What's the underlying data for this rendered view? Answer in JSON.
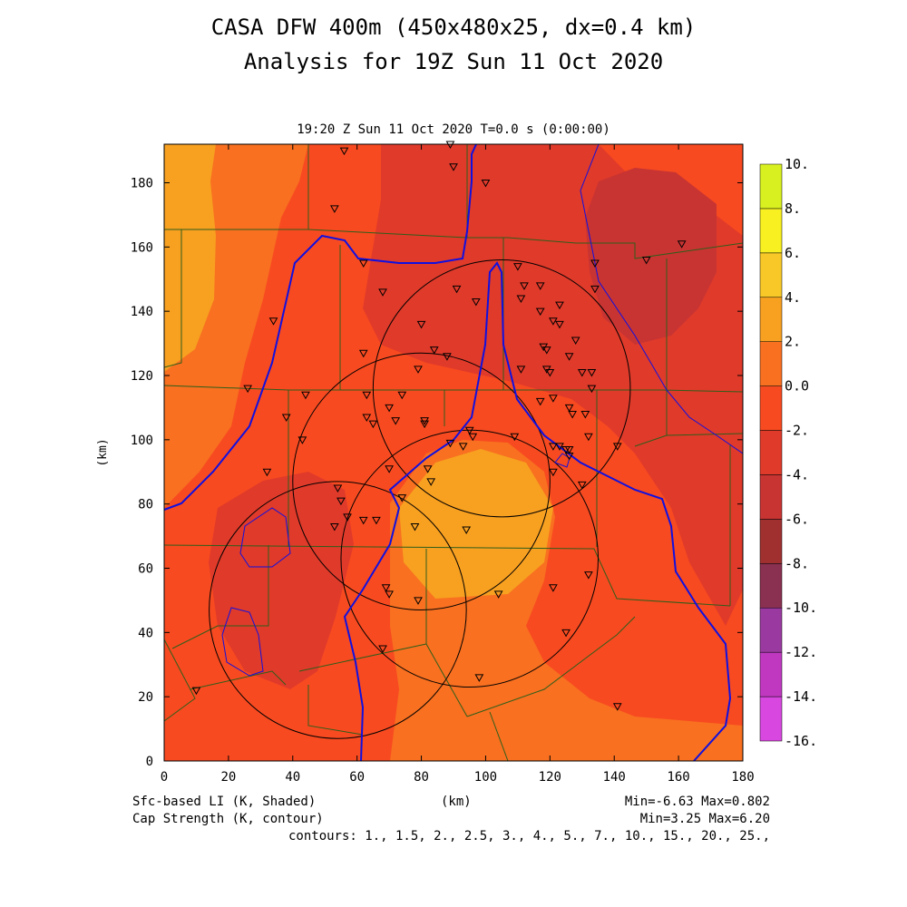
{
  "header": {
    "title_line1": "CASA DFW 400m (450x480x25, dx=0.4 km)",
    "title_line2": "Analysis for 19Z Sun 11 Oct 2020",
    "subtitle": "19:20 Z Sun 11 Oct 2020   T=0.0 s (0:00:00)"
  },
  "footer": {
    "shaded_label": "Sfc-based LI (K, Shaded)",
    "contour_label": "Cap Strength (K, contour)",
    "xunit": "(km)",
    "shaded_minmax": "Min=-6.63 Max=0.802",
    "contour_minmax": "Min=3.25 Max=6.20",
    "contours": "contours: 1., 1.5, 2., 2.5, 3., 4., 5., 7., 10., 15., 20., 25.,"
  },
  "chart_data": {
    "type": "heatmap",
    "xlabel": "(km)",
    "ylabel": "(km)",
    "xlim": [
      0,
      180
    ],
    "ylim": [
      0,
      192
    ],
    "xticks": [
      0,
      20,
      40,
      60,
      80,
      100,
      120,
      140,
      160,
      180
    ],
    "yticks": [
      0,
      20,
      40,
      60,
      80,
      100,
      120,
      140,
      160,
      180
    ],
    "colorbar": {
      "levels": [
        "-16.",
        "-14.",
        "-12.",
        "-10.",
        "-8.",
        "-6.",
        "-4.",
        "-2.",
        "0.0",
        "2.",
        "4.",
        "6.",
        "8.",
        "10."
      ],
      "colors": [
        "#d848e0",
        "#c038c0",
        "#9a3aa0",
        "#8a3050",
        "#a03030",
        "#c83432",
        "#e03a2a",
        "#f84a20",
        "#f87020",
        "#f8a020",
        "#f8c828",
        "#f8f020",
        "#d8f020",
        "#a8e020"
      ]
    },
    "field_colors": {
      "li_neg2_to_0": "#f87020",
      "li_neg4_to_neg2": "#f84a20",
      "li_neg6_to_neg4": "#e03a2a",
      "li_neg8_to_neg6": "#c83432",
      "li_0_to_2": "#f8a020"
    },
    "cap_contour_color": "#1010e0",
    "range_rings": [
      {
        "center": [
          105,
          116
        ],
        "radius": 40
      },
      {
        "center": [
          80,
          87
        ],
        "radius": 40
      },
      {
        "center": [
          95,
          63
        ],
        "radius": 40
      },
      {
        "center": [
          54,
          47
        ],
        "radius": 40
      }
    ],
    "stations": [
      [
        56,
        190
      ],
      [
        89,
        192
      ],
      [
        90,
        185
      ],
      [
        100,
        180
      ],
      [
        53,
        172
      ],
      [
        62,
        155
      ],
      [
        110,
        154
      ],
      [
        134,
        155
      ],
      [
        150,
        156
      ],
      [
        161,
        161
      ],
      [
        68,
        146
      ],
      [
        91,
        147
      ],
      [
        97,
        143
      ],
      [
        111,
        144
      ],
      [
        112,
        148
      ],
      [
        117,
        148
      ],
      [
        123,
        142
      ],
      [
        134,
        147
      ],
      [
        34,
        137
      ],
      [
        80,
        136
      ],
      [
        117,
        140
      ],
      [
        121,
        137
      ],
      [
        123,
        136
      ],
      [
        118,
        129
      ],
      [
        119,
        128
      ],
      [
        128,
        131
      ],
      [
        62,
        127
      ],
      [
        84,
        128
      ],
      [
        88,
        126
      ],
      [
        111,
        122
      ],
      [
        119,
        122
      ],
      [
        120,
        121
      ],
      [
        126,
        126
      ],
      [
        130,
        121
      ],
      [
        133,
        121
      ],
      [
        26,
        116
      ],
      [
        79,
        122
      ],
      [
        63,
        114
      ],
      [
        74,
        114
      ],
      [
        44,
        114
      ],
      [
        38,
        107
      ],
      [
        70,
        110
      ],
      [
        117,
        112
      ],
      [
        121,
        113
      ],
      [
        126,
        110
      ],
      [
        131,
        108
      ],
      [
        133,
        116
      ],
      [
        127,
        108
      ],
      [
        63,
        107
      ],
      [
        65,
        105
      ],
      [
        72,
        106
      ],
      [
        81,
        106
      ],
      [
        81,
        105
      ],
      [
        95,
        103
      ],
      [
        123,
        98
      ],
      [
        126,
        97
      ],
      [
        132,
        101
      ],
      [
        141,
        98
      ],
      [
        109,
        101
      ],
      [
        89,
        99
      ],
      [
        93,
        98
      ],
      [
        96,
        101
      ],
      [
        121,
        98
      ],
      [
        125,
        97
      ],
      [
        126,
        95
      ],
      [
        43,
        100
      ],
      [
        32,
        90
      ],
      [
        54,
        85
      ],
      [
        70,
        91
      ],
      [
        82,
        91
      ],
      [
        83,
        87
      ],
      [
        74,
        82
      ],
      [
        121,
        90
      ],
      [
        130,
        86
      ],
      [
        55,
        81
      ],
      [
        57,
        76
      ],
      [
        62,
        75
      ],
      [
        66,
        75
      ],
      [
        78,
        73
      ],
      [
        94,
        72
      ],
      [
        53,
        73
      ],
      [
        132,
        58
      ],
      [
        121,
        54
      ],
      [
        69,
        54
      ],
      [
        70,
        52
      ],
      [
        79,
        50
      ],
      [
        104,
        52
      ],
      [
        125,
        40
      ],
      [
        68,
        35
      ],
      [
        98,
        26
      ],
      [
        141,
        17
      ],
      [
        10,
        22
      ]
    ]
  }
}
